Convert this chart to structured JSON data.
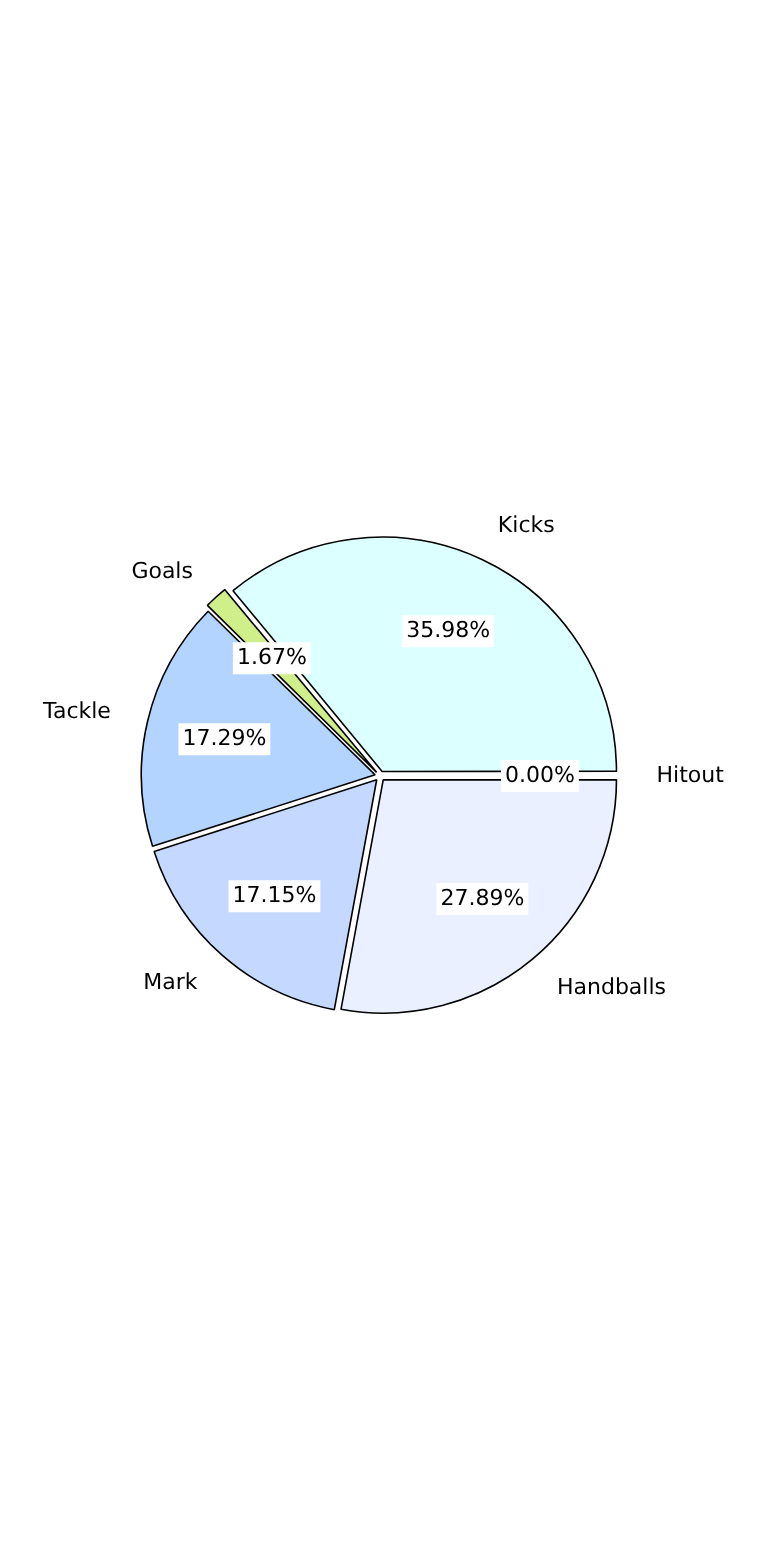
{
  "chart_data": {
    "type": "pie",
    "categories": [
      "Handballs",
      "Mark",
      "Tackle",
      "Goals",
      "Kicks",
      "Hitout"
    ],
    "values": [
      27.89,
      17.15,
      17.29,
      1.67,
      35.98,
      0.0
    ],
    "colors": [
      "#eaf0ff",
      "#c5d8ff",
      "#b3d4ff",
      "#d0ee8a",
      "#dcffff",
      "#c0c0c0"
    ],
    "value_labels": [
      "27.89%",
      "17.15%",
      "17.29%",
      "1.67%",
      "35.98%",
      "0.00%"
    ],
    "legend": false
  }
}
